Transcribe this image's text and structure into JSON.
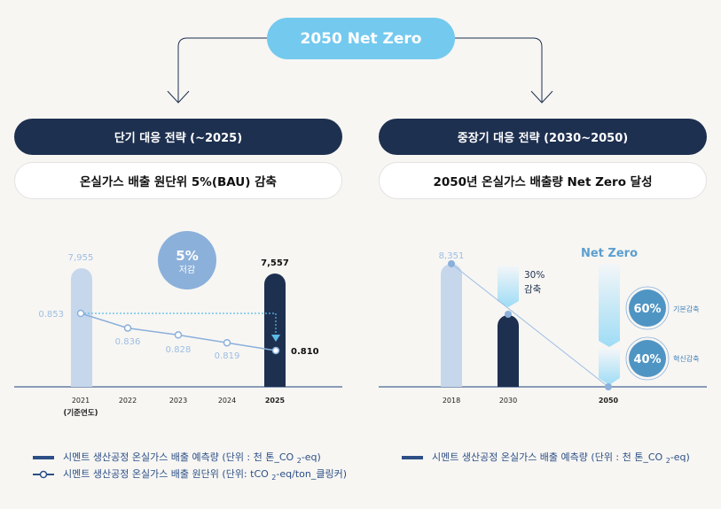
{
  "header": {
    "title": "2050 Net Zero"
  },
  "left": {
    "strategy": "단기 대응 전략 (~2025)",
    "goal": "온실가스 배출 원단위 5%(BAU) 감축",
    "badge_value": "5%",
    "badge_label": "저감",
    "base_year_note": "(기준연도)"
  },
  "right": {
    "strategy": "중장기 대응 전략 (2030~2050)",
    "goal": "2050년 온실가스 배출량 Net Zero 달성",
    "reduction_value": "30%",
    "reduction_label": "감축",
    "net_zero_label": "Net Zero",
    "basic": {
      "value": "60%",
      "label": "기본감축"
    },
    "innovation": {
      "value": "40%",
      "label": "혁신감축"
    }
  },
  "legend": {
    "emissions": "시멘트 생산공정 온실가스 배출 예측량 (단위 : 천 톤_CO",
    "emissions_suffix": "-eq)",
    "intensity": "시멘트 생산공정 온실가스 배출 원단위 (단위: tCO",
    "intensity_suffix": "-eq/ton_클링커)",
    "sub": "2"
  },
  "colors": {
    "accent": "#74c9ee",
    "navy": "#1e3050",
    "light_bar": "#c6d7ec",
    "line": "#8bb0da",
    "circle": "#4f95c4"
  },
  "chart_data": [
    {
      "type": "bar+line",
      "categories": [
        "2021",
        "2022",
        "2023",
        "2024",
        "2025"
      ],
      "series": [
        {
          "name": "시멘트 생산공정 온실가스 배출 예측량",
          "values": [
            7955,
            null,
            null,
            null,
            7557
          ],
          "labels": [
            "7,955",
            "",
            "",
            "",
            "7,557"
          ]
        },
        {
          "name": "시멘트 생산공정 온실가스 배출 원단위",
          "values": [
            0.853,
            0.836,
            0.828,
            0.819,
            0.81
          ],
          "labels": [
            "0.853",
            "0.836",
            "0.828",
            "0.819",
            "0.810"
          ]
        }
      ]
    },
    {
      "type": "bar+line",
      "categories": [
        "2018",
        "2030",
        "2050"
      ],
      "series": [
        {
          "name": "시멘트 생산공정 온실가스 배출 예측량",
          "values": [
            8351,
            5846,
            0
          ],
          "labels": [
            "8,351",
            "",
            ""
          ]
        }
      ]
    }
  ]
}
